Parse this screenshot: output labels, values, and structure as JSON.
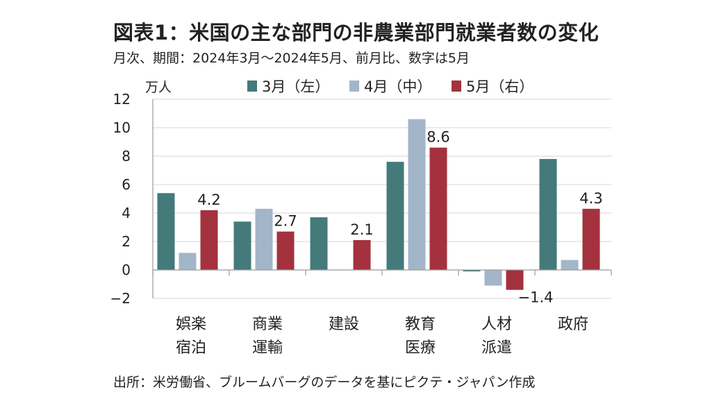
{
  "title": "図表1：米国の主な部門の非農業部門就業者数の変化",
  "subtitle": "月次、期間：2024年3月～2024年5月、前月比、数字は5月",
  "source": "出所：米労働省、ブルームバーグのデータを基にピクテ・ジャパン作成",
  "chart_data": {
    "type": "bar",
    "unit_label": "万人",
    "categories": [
      [
        "娯楽",
        "宿泊"
      ],
      [
        "商業",
        "運輸"
      ],
      [
        "建設"
      ],
      [
        "教育",
        "医療"
      ],
      [
        "人材",
        "派遣"
      ],
      [
        "政府"
      ]
    ],
    "series": [
      {
        "name": "3月（左）",
        "color": "#447a7a",
        "values": [
          5.4,
          3.4,
          3.7,
          7.6,
          -0.1,
          7.8
        ]
      },
      {
        "name": "4月（中）",
        "color": "#a3b5c8",
        "values": [
          1.2,
          4.3,
          0.0,
          10.6,
          -1.1,
          0.7
        ]
      },
      {
        "name": "5月（右）",
        "color": "#a3323e",
        "values": [
          4.2,
          2.7,
          2.1,
          8.6,
          -1.4,
          4.3
        ]
      }
    ],
    "data_labels": [
      "4.2",
      "2.7",
      "2.1",
      "8.6",
      "-1.4",
      "4.3"
    ],
    "ylim": [
      -2,
      12
    ],
    "yticks": [
      -2,
      0,
      2,
      4,
      6,
      8,
      10,
      12
    ],
    "ytick_labels": [
      "−2",
      "0",
      "2",
      "4",
      "6",
      "8",
      "10",
      "12"
    ],
    "grid": true,
    "legend": "top"
  }
}
